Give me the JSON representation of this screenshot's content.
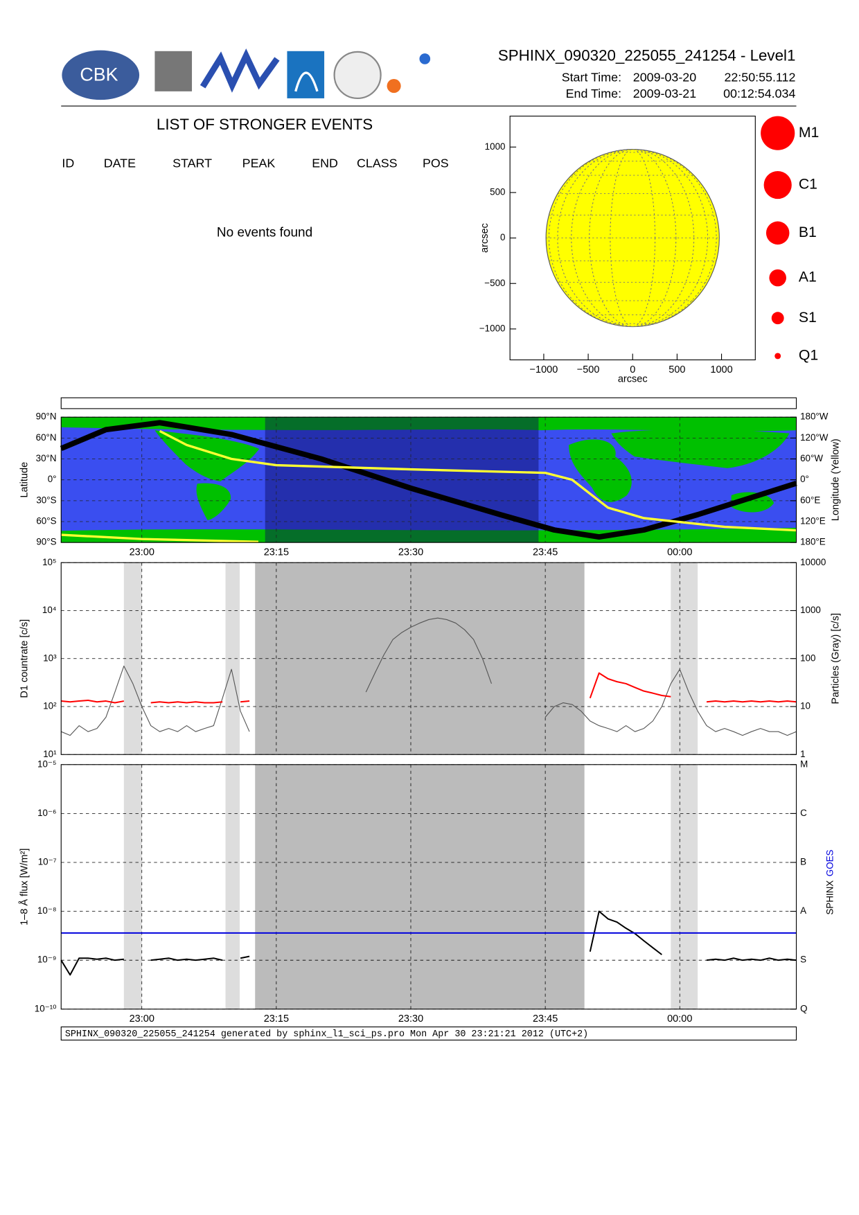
{
  "header": {
    "title": "SPHINX_090320_225055_241254 - Level1",
    "logo_text": "CBK",
    "start_label": "Start Time:",
    "start_date": "2009-03-20",
    "start_time": "22:50:55.112",
    "end_label": "End Time:",
    "end_date": "2009-03-21",
    "end_time": "00:12:54.034"
  },
  "events": {
    "title": "LIST OF STRONGER EVENTS",
    "columns": [
      "ID",
      "DATE",
      "START",
      "PEAK",
      "END",
      "CLASS",
      "POS"
    ],
    "message": "No events found"
  },
  "chart_data": [
    {
      "type": "disk",
      "xlabel": "arcsec",
      "ylabel": "arcsec",
      "xlim": [
        -1380,
        1380
      ],
      "ylim": [
        -1340,
        1340
      ],
      "xticks": [
        {
          "value": -1000,
          "label": "−1000"
        },
        {
          "value": -500,
          "label": "−500"
        },
        0,
        500,
        1000
      ],
      "yticks": [
        {
          "value": -1000,
          "label": "−1000"
        },
        {
          "value": -500,
          "label": "−500"
        },
        0,
        500,
        1000
      ],
      "grid": false,
      "disk_radius": 975,
      "disk_color": "#ffff00",
      "legend": {
        "labels": [
          "M1",
          "C1",
          "B1",
          "A1",
          "S1",
          "Q1"
        ],
        "color": "#ff0000"
      }
    },
    {
      "type": "track",
      "ylabel": "Latitude",
      "y2label": "Longitude (Yellow)",
      "xlim": [
        "22:51",
        "00:13"
      ],
      "xticks": [
        "23:00",
        "23:15",
        "23:30",
        "23:45",
        "00:00"
      ],
      "xtick_labels": true,
      "ylim": [
        -90,
        90
      ],
      "yticks": [
        {
          "value": -90,
          "label": "90°S"
        },
        {
          "value": -60,
          "label": "60°S"
        },
        {
          "value": -30,
          "label": "30°S"
        },
        {
          "value": 0,
          "label": "0°"
        },
        {
          "value": 30,
          "label": "30°N"
        },
        {
          "value": 60,
          "label": "60°N"
        },
        {
          "value": 90,
          "label": "90°N"
        }
      ],
      "y2lim": [
        180,
        -180
      ],
      "y2ticks": [
        {
          "value": -180,
          "label": "180°W"
        },
        {
          "value": -120,
          "label": "120°W"
        },
        {
          "value": -60,
          "label": "60°W"
        },
        {
          "value": 0,
          "label": "0°"
        },
        {
          "value": 60,
          "label": "60°E"
        },
        {
          "value": 120,
          "label": "120°E"
        },
        {
          "value": 180,
          "label": "180°E"
        }
      ],
      "grid": true,
      "shaded": [
        {
          "start": "23:13:45",
          "end": "23:44:15",
          "color": "rgba(10,10,90,0.45)"
        }
      ],
      "series": [
        {
          "color": "#000000",
          "x": [
            "22:51",
            "22:56",
            "23:02",
            "23:10",
            "23:20",
            "23:30",
            "23:40",
            "23:46",
            "23:51",
            "23:56",
            "00:02",
            "00:13"
          ],
          "values": [
            45,
            72,
            82,
            65,
            30,
            -12,
            -50,
            -72,
            -82,
            -72,
            -50,
            -5
          ]
        },
        {
          "color": "#ffff33",
          "axis": "y2",
          "x": [
            "22:51",
            "23:00",
            "23:13"
          ],
          "values": [
            158,
            170,
            178
          ]
        },
        {
          "color": "#ffff33",
          "axis": "y2",
          "x": [
            "23:02",
            "23:05",
            "23:10",
            "23:15",
            "23:30",
            "23:45",
            "23:48",
            "23:52",
            "23:56",
            "00:05",
            "00:13"
          ],
          "values": [
            -140,
            -100,
            -60,
            -42,
            -30,
            -20,
            0,
            80,
            110,
            135,
            145
          ]
        }
      ]
    },
    {
      "type": "line",
      "ylabel": "D1 countrate [c/s]",
      "y2label": "Particles (Gray) [c/s]",
      "ylog": true,
      "xlim": [
        "22:51",
        "00:13"
      ],
      "xticks": [
        "23:00",
        "23:15",
        "23:30",
        "23:45",
        "00:00"
      ],
      "xtick_labels": false,
      "ylim": [
        10,
        100000
      ],
      "yticks": [
        {
          "value": 10,
          "label": "10¹"
        },
        {
          "value": 100,
          "label": "10²"
        },
        {
          "value": 1000,
          "label": "10³"
        },
        {
          "value": 10000,
          "label": "10⁴"
        },
        {
          "value": 100000,
          "label": "10⁵"
        }
      ],
      "y2lim": [
        1,
        10000
      ],
      "y2ticks": [
        1,
        10,
        100,
        1000,
        10000
      ],
      "grid": true,
      "shaded": [
        {
          "start": "22:58",
          "end": "23:00",
          "color": "#dddddd"
        },
        {
          "start": "23:09:20",
          "end": "23:10:55",
          "color": "#dddddd"
        },
        {
          "start": "23:12:38",
          "end": "23:49:22",
          "color": "#bbbbbb"
        },
        {
          "start": "23:59",
          "end": "00:02",
          "color": "#dddddd"
        }
      ],
      "x": [
        "22:51",
        "22:52",
        "22:53",
        "22:54",
        "22:55",
        "22:56",
        "22:57",
        "22:58",
        "22:59",
        "23:00",
        "23:01",
        "23:02",
        "23:03",
        "23:04",
        "23:05",
        "23:06",
        "23:07",
        "23:08",
        "23:09",
        "23:10",
        "23:11",
        "23:12",
        "23:13",
        "23:14",
        "23:15",
        "23:16",
        "23:17",
        "23:18",
        "23:19",
        "23:20",
        "23:21",
        "23:22",
        "23:23",
        "23:24",
        "23:25",
        "23:26",
        "23:27",
        "23:28",
        "23:29",
        "23:30",
        "23:31",
        "23:32",
        "23:33",
        "23:34",
        "23:35",
        "23:36",
        "23:37",
        "23:38",
        "23:39",
        "23:40",
        "23:41",
        "23:42",
        "23:43",
        "23:44",
        "23:45",
        "23:46",
        "23:47",
        "23:48",
        "23:49",
        "23:50",
        "23:51",
        "23:52",
        "23:53",
        "23:54",
        "23:55",
        "23:56",
        "23:57",
        "23:58",
        "23:59",
        "00:00",
        "00:01",
        "00:02",
        "00:03",
        "00:04",
        "00:05",
        "00:06",
        "00:07",
        "00:08",
        "00:09",
        "00:10",
        "00:11",
        "00:12",
        "00:13"
      ],
      "series": [
        {
          "color": "#555555",
          "axis": "y2",
          "values": [
            3,
            2.5,
            4,
            3,
            3.5,
            6,
            20,
            70,
            30,
            10,
            4,
            3,
            3.5,
            3,
            4,
            3,
            3.5,
            4,
            15,
            60,
            8,
            3,
            null,
            null,
            null,
            null,
            null,
            null,
            null,
            null,
            null,
            null,
            null,
            null,
            20,
            50,
            120,
            250,
            350,
            450,
            550,
            650,
            700,
            650,
            550,
            400,
            250,
            100,
            30,
            null,
            null,
            null,
            null,
            null,
            6,
            10,
            12,
            11,
            8,
            5,
            4,
            3.5,
            3,
            4,
            3,
            3.5,
            5,
            10,
            30,
            60,
            20,
            8,
            4,
            3,
            3.5,
            3,
            2.5,
            3,
            3.5,
            3,
            3,
            2.5,
            3
          ]
        },
        {
          "color": "#ff0000",
          "values": [
            130,
            125,
            130,
            135,
            125,
            130,
            120,
            130,
            null,
            null,
            120,
            125,
            120,
            125,
            120,
            125,
            120,
            120,
            125,
            null,
            125,
            130,
            null,
            null,
            null,
            null,
            null,
            null,
            null,
            null,
            null,
            null,
            null,
            null,
            null,
            null,
            null,
            null,
            null,
            null,
            null,
            null,
            null,
            null,
            null,
            null,
            null,
            null,
            null,
            null,
            null,
            null,
            null,
            null,
            null,
            null,
            null,
            null,
            null,
            150,
            500,
            380,
            330,
            300,
            250,
            210,
            190,
            170,
            160,
            null,
            null,
            null,
            125,
            130,
            125,
            130,
            125,
            130,
            125,
            130,
            125,
            130,
            125
          ]
        }
      ]
    },
    {
      "type": "line",
      "ylabel": "1–8 Å flux [W/m²]",
      "ylog": true,
      "legend": "right",
      "xlim": [
        "22:51",
        "00:13"
      ],
      "xticks": [
        "23:00",
        "23:15",
        "23:30",
        "23:45",
        "00:00"
      ],
      "xtick_labels": true,
      "ylim": [
        1e-10,
        1e-05
      ],
      "yticks": [
        {
          "value": 1e-10,
          "label": "10⁻¹⁰"
        },
        {
          "value": 1e-09,
          "label": "10⁻⁹"
        },
        {
          "value": 1e-08,
          "label": "10⁻⁸"
        },
        {
          "value": 1e-07,
          "label": "10⁻⁷"
        },
        {
          "value": 1e-06,
          "label": "10⁻⁶"
        },
        {
          "value": 1e-05,
          "label": "10⁻⁵"
        }
      ],
      "y2lim": [
        1e-10,
        1e-05
      ],
      "y2ticks": [
        {
          "value": 1e-10,
          "label": "Q"
        },
        {
          "value": 1e-09,
          "label": "S"
        },
        {
          "value": 1e-08,
          "label": "A"
        },
        {
          "value": 1e-07,
          "label": "B"
        },
        {
          "value": 1e-06,
          "label": "C"
        },
        {
          "value": 1e-05,
          "label": "M"
        }
      ],
      "grid": true,
      "shaded": [
        {
          "start": "22:58",
          "end": "23:00",
          "color": "#dddddd"
        },
        {
          "start": "23:09:20",
          "end": "23:10:55",
          "color": "#dddddd"
        },
        {
          "start": "23:12:38",
          "end": "23:49:22",
          "color": "#bbbbbb"
        },
        {
          "start": "23:59",
          "end": "00:02",
          "color": "#dddddd"
        }
      ],
      "x": [
        "22:51",
        "22:52",
        "22:53",
        "22:54",
        "22:55",
        "22:56",
        "22:57",
        "22:58",
        "22:59",
        "23:00",
        "23:01",
        "23:02",
        "23:03",
        "23:04",
        "23:05",
        "23:06",
        "23:07",
        "23:08",
        "23:09",
        "23:10",
        "23:11",
        "23:12",
        "23:13",
        "23:14",
        "23:15",
        "23:16",
        "23:17",
        "23:18",
        "23:19",
        "23:20",
        "23:21",
        "23:22",
        "23:23",
        "23:24",
        "23:25",
        "23:26",
        "23:27",
        "23:28",
        "23:29",
        "23:30",
        "23:31",
        "23:32",
        "23:33",
        "23:34",
        "23:35",
        "23:36",
        "23:37",
        "23:38",
        "23:39",
        "23:40",
        "23:41",
        "23:42",
        "23:43",
        "23:44",
        "23:45",
        "23:46",
        "23:47",
        "23:48",
        "23:49",
        "23:50",
        "23:51",
        "23:52",
        "23:53",
        "23:54",
        "23:55",
        "23:56",
        "23:57",
        "23:58",
        "23:59",
        "00:00",
        "00:01",
        "00:02",
        "00:03",
        "00:04",
        "00:05",
        "00:06",
        "00:07",
        "00:08",
        "00:09",
        "00:10",
        "00:11",
        "00:12",
        "00:13"
      ],
      "series": [
        {
          "name": "SPHINX",
          "color": "#000000",
          "values": [
            1e-09,
            5e-10,
            1.1e-09,
            1.1e-09,
            1.05e-09,
            1.1e-09,
            1e-09,
            1.05e-09,
            null,
            null,
            1e-09,
            1.05e-09,
            1.1e-09,
            1e-09,
            1.05e-09,
            1e-09,
            1.05e-09,
            1.1e-09,
            1e-09,
            null,
            1.1e-09,
            1.2e-09,
            null,
            null,
            null,
            null,
            null,
            null,
            null,
            null,
            null,
            null,
            null,
            null,
            null,
            null,
            null,
            null,
            null,
            null,
            null,
            null,
            null,
            null,
            null,
            null,
            null,
            null,
            null,
            null,
            null,
            null,
            null,
            null,
            null,
            null,
            null,
            null,
            null,
            1.5e-09,
            1e-08,
            7e-09,
            6e-09,
            4.5e-09,
            3.5e-09,
            2.5e-09,
            1.8e-09,
            1.3e-09,
            null,
            null,
            null,
            null,
            1e-09,
            1.05e-09,
            1e-09,
            1.1e-09,
            1e-09,
            1.05e-09,
            1e-09,
            1.1e-09,
            1e-09,
            1.05e-09,
            1e-09
          ]
        },
        {
          "name": "GOES",
          "color": "#0000dd",
          "x": [
            "22:51",
            "00:13"
          ],
          "values": [
            3.6e-09,
            3.6e-09
          ]
        }
      ]
    }
  ],
  "footer": "SPHINX_090320_225055_241254 generated by sphinx_l1_sci_ps.pro Mon Apr 30 23:21:21 2012 (UTC+2)"
}
